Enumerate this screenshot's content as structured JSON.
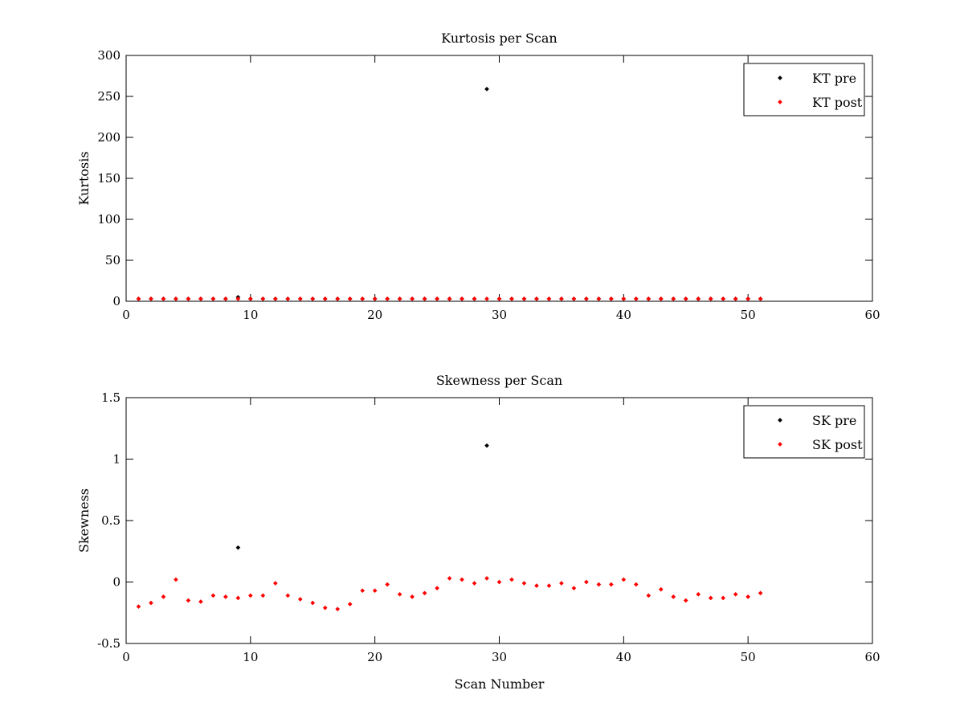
{
  "chart_data": [
    {
      "type": "scatter",
      "title": "Kurtosis per Scan",
      "xlabel": "",
      "ylabel": "Kurtosis",
      "xlim": [
        0,
        60
      ],
      "ylim": [
        0,
        300
      ],
      "xticks": [
        0,
        10,
        20,
        30,
        40,
        50,
        60
      ],
      "yticks": [
        0,
        50,
        100,
        150,
        200,
        250,
        300
      ],
      "xtick_labels": [
        "0",
        "10",
        "20",
        "30",
        "40",
        "50",
        "60"
      ],
      "ytick_labels": [
        "0",
        "50",
        "100",
        "150",
        "200",
        "250",
        "300"
      ],
      "grid": false,
      "legend_position": "top-right",
      "series": [
        {
          "name": "KT pre",
          "color": "#000000",
          "x": [
            1,
            2,
            3,
            4,
            5,
            6,
            7,
            8,
            9,
            10,
            11,
            12,
            13,
            14,
            15,
            16,
            17,
            18,
            19,
            20,
            21,
            22,
            23,
            24,
            25,
            26,
            27,
            28,
            29,
            30,
            31,
            32,
            33,
            34,
            35,
            36,
            37,
            38,
            39,
            40,
            41,
            42,
            43,
            44,
            45,
            46,
            47,
            48,
            49,
            50,
            51
          ],
          "y": [
            3,
            3,
            3,
            3,
            3,
            3,
            3,
            3,
            5,
            3,
            3,
            3,
            3,
            3,
            3,
            3,
            3,
            3,
            3,
            3,
            3,
            3,
            3,
            3,
            3,
            3,
            3,
            3,
            259,
            3,
            3,
            3,
            3,
            3,
            3,
            3,
            3,
            3,
            3,
            3,
            3,
            3,
            3,
            3,
            3,
            3,
            3,
            3,
            3,
            3,
            3
          ]
        },
        {
          "name": "KT post",
          "color": "#ff0000",
          "x": [
            1,
            2,
            3,
            4,
            5,
            6,
            7,
            8,
            9,
            10,
            11,
            12,
            13,
            14,
            15,
            16,
            17,
            18,
            19,
            20,
            21,
            22,
            23,
            24,
            25,
            26,
            27,
            28,
            29,
            30,
            31,
            32,
            33,
            34,
            35,
            36,
            37,
            38,
            39,
            40,
            41,
            42,
            43,
            44,
            45,
            46,
            47,
            48,
            49,
            50,
            51
          ],
          "y": [
            3,
            3,
            3,
            3,
            3,
            3,
            3,
            3,
            3,
            3,
            3,
            3,
            3,
            3,
            3,
            3,
            3,
            3,
            3,
            3,
            3,
            3,
            3,
            3,
            3,
            3,
            3,
            3,
            3,
            3,
            3,
            3,
            3,
            3,
            3,
            3,
            3,
            3,
            3,
            3,
            3,
            3,
            3,
            3,
            3,
            3,
            3,
            3,
            3,
            3,
            3
          ]
        }
      ]
    },
    {
      "type": "scatter",
      "title": "Skewness per Scan",
      "xlabel": "Scan Number",
      "ylabel": "Skewness",
      "xlim": [
        0,
        60
      ],
      "ylim": [
        -0.5,
        1.5
      ],
      "xticks": [
        0,
        10,
        20,
        30,
        40,
        50,
        60
      ],
      "yticks": [
        -0.5,
        0,
        0.5,
        1,
        1.5
      ],
      "xtick_labels": [
        "0",
        "10",
        "20",
        "30",
        "40",
        "50",
        "60"
      ],
      "ytick_labels": [
        "-0.5",
        "0",
        "0.5",
        "1",
        "1.5"
      ],
      "grid": false,
      "legend_position": "top-right",
      "series": [
        {
          "name": "SK pre",
          "color": "#000000",
          "x": [
            9,
            29
          ],
          "y": [
            0.28,
            1.11
          ]
        },
        {
          "name": "SK post",
          "color": "#ff0000",
          "x": [
            1,
            2,
            3,
            4,
            5,
            6,
            7,
            8,
            9,
            10,
            11,
            12,
            13,
            14,
            15,
            16,
            17,
            18,
            19,
            20,
            21,
            22,
            23,
            24,
            25,
            26,
            27,
            28,
            29,
            30,
            31,
            32,
            33,
            34,
            35,
            36,
            37,
            38,
            39,
            40,
            41,
            42,
            43,
            44,
            45,
            46,
            47,
            48,
            49,
            50,
            51
          ],
          "y": [
            -0.2,
            -0.17,
            -0.12,
            0.02,
            -0.15,
            -0.16,
            -0.11,
            -0.12,
            -0.13,
            -0.11,
            -0.11,
            -0.01,
            -0.11,
            -0.14,
            -0.17,
            -0.21,
            -0.22,
            -0.18,
            -0.07,
            -0.07,
            -0.02,
            -0.1,
            -0.12,
            -0.09,
            -0.05,
            0.03,
            0.02,
            -0.01,
            0.03,
            0.0,
            0.02,
            -0.01,
            -0.03,
            -0.03,
            -0.01,
            -0.05,
            0.0,
            -0.02,
            -0.02,
            0.02,
            -0.02,
            -0.11,
            -0.06,
            -0.12,
            -0.15,
            -0.1,
            -0.13,
            -0.13,
            -0.1,
            -0.12,
            -0.09
          ]
        }
      ]
    }
  ]
}
